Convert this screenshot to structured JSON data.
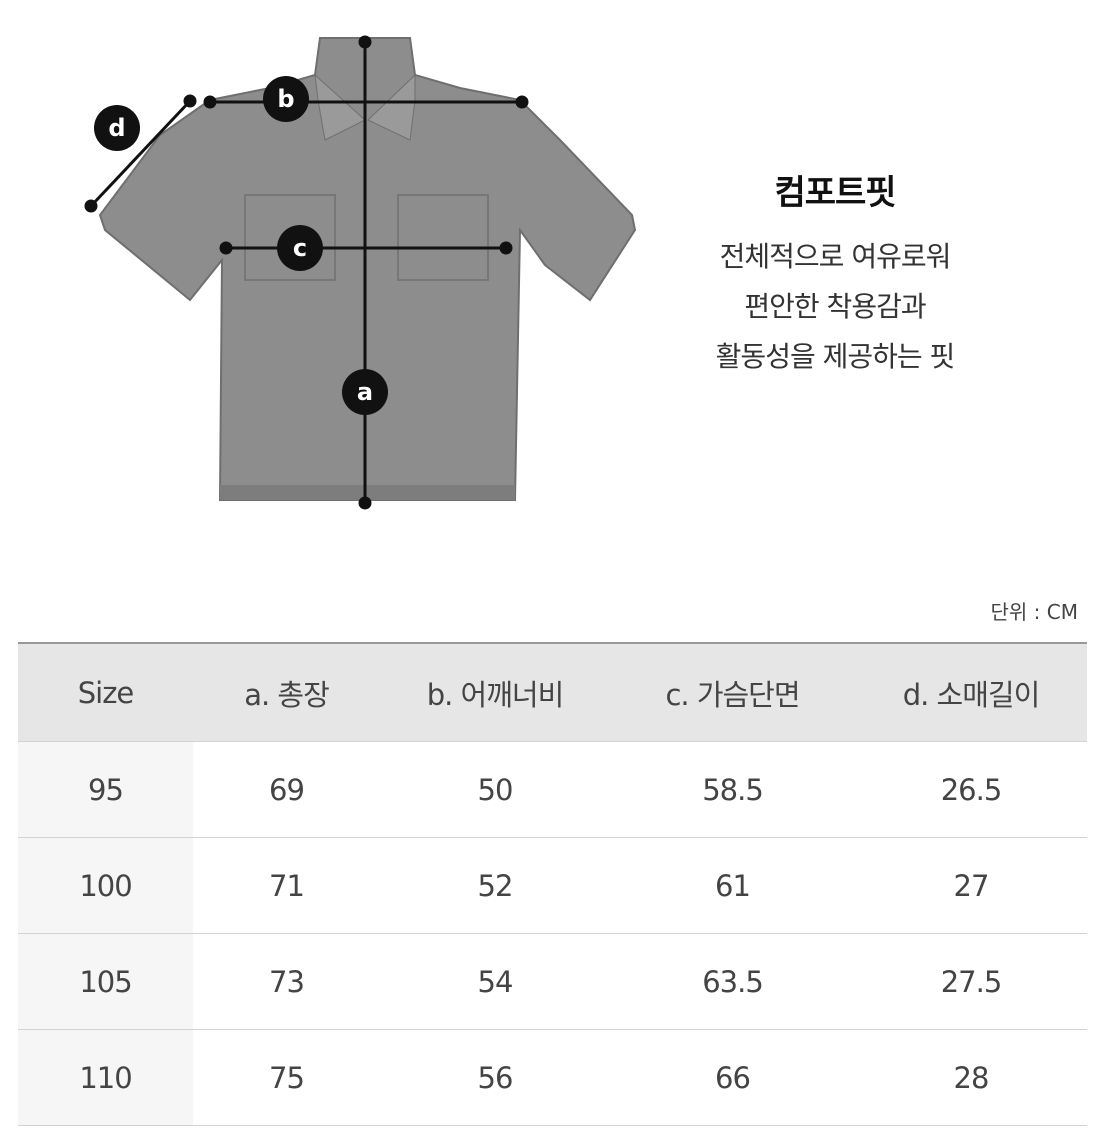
{
  "fit": {
    "title": "컴포트핏",
    "description": [
      "전체적으로 여유로워",
      "편안한 착용감과",
      "활동성을 제공하는 핏"
    ]
  },
  "diagram": {
    "labels": {
      "a": "a",
      "b": "b",
      "c": "c",
      "d": "d"
    },
    "shirt_color": "#8a8a8a",
    "marker_color": "#111111"
  },
  "unit": "단위 : CM",
  "table": {
    "headers": [
      "Size",
      "a. 총장",
      "b. 어깨너비",
      "c. 가슴단면",
      "d. 소매길이"
    ],
    "rows": [
      [
        "95",
        "69",
        "50",
        "58.5",
        "26.5"
      ],
      [
        "100",
        "71",
        "52",
        "61",
        "27"
      ],
      [
        "105",
        "73",
        "54",
        "63.5",
        "27.5"
      ],
      [
        "110",
        "75",
        "56",
        "66",
        "28"
      ]
    ]
  }
}
